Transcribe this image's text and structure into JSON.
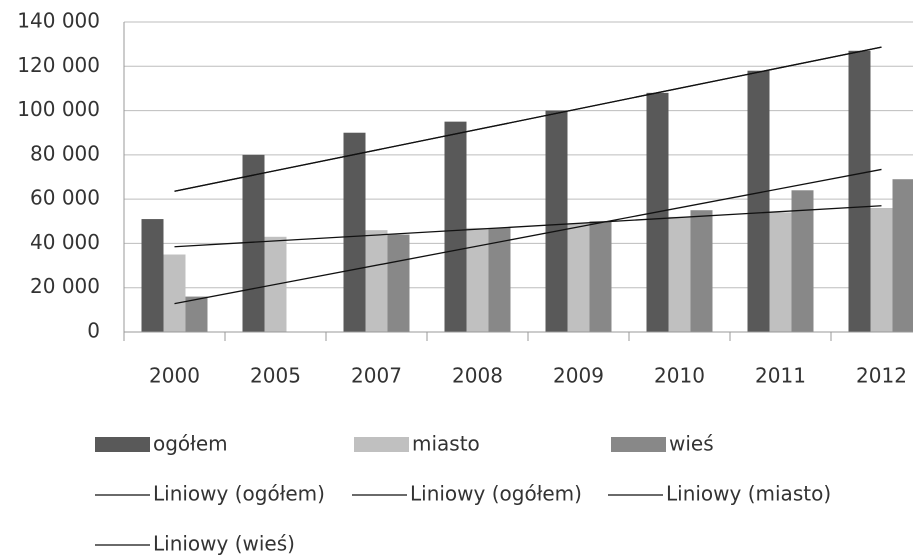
{
  "chart_data": {
    "type": "bar",
    "categories": [
      "2000",
      "2005",
      "2007",
      "2008",
      "2009",
      "2010",
      "2011",
      "2012"
    ],
    "series": [
      {
        "name": "ogółem",
        "color": "#595959",
        "values": [
          51000,
          80000,
          90000,
          95000,
          100000,
          108000,
          118000,
          127000
        ]
      },
      {
        "name": "miasto",
        "color": "#c0c0c0",
        "values": [
          35000,
          43000,
          46000,
          47000,
          49000,
          52000,
          54000,
          56000
        ]
      },
      {
        "name": "wieś",
        "color": "#888888",
        "values": [
          16000,
          0,
          44000,
          47000,
          50000,
          55000,
          64000,
          69000
        ]
      }
    ],
    "trendlines": [
      "Liniowy (ogółem)",
      "Liniowy (ogółem)",
      "Liniowy (miasto)",
      "Liniowy (wieś)"
    ],
    "trendline_color": "#111111",
    "ylim": [
      0,
      140000
    ],
    "yticks": [
      0,
      {
        "value": 20000,
        "label": "20 000"
      },
      {
        "value": 40000,
        "label": "40 000"
      },
      {
        "value": 60000,
        "label": "60 000"
      },
      {
        "value": 80000,
        "label": "80 000"
      },
      {
        "value": 100000,
        "label": "100 000"
      },
      {
        "value": 120000,
        "label": "120 000"
      },
      {
        "value": 140000,
        "label": "140 000"
      }
    ],
    "grid": true
  }
}
